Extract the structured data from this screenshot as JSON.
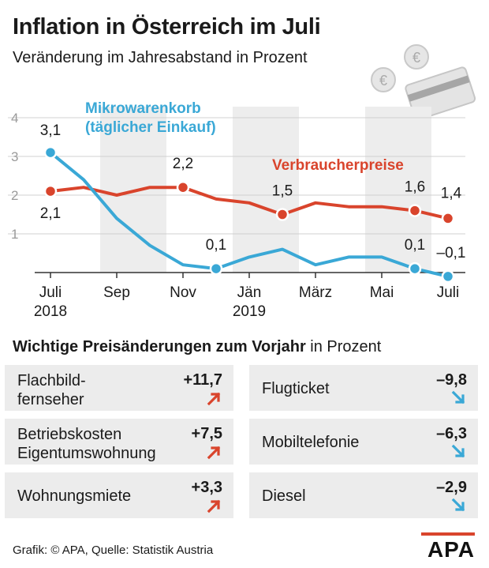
{
  "header": {
    "title": "Inflation in Österreich im Juli",
    "subtitle": "Veränderung im Jahresabstand in Prozent"
  },
  "chart_data": {
    "type": "line",
    "ylim": [
      0,
      4
    ],
    "yticks": [
      "1",
      "2",
      "3",
      "4"
    ],
    "x_ticks": [
      {
        "label": "Juli",
        "sublabel": "2018",
        "month": 0
      },
      {
        "label": "Sep",
        "sublabel": "",
        "month": 2
      },
      {
        "label": "Nov",
        "sublabel": "",
        "month": 4
      },
      {
        "label": "Jän",
        "sublabel": "2019",
        "month": 6
      },
      {
        "label": "März",
        "sublabel": "",
        "month": 8
      },
      {
        "label": "Mai",
        "sublabel": "",
        "month": 10
      },
      {
        "label": "Juli",
        "sublabel": "",
        "month": 12
      }
    ],
    "series": [
      {
        "name": "Verbraucherpreise",
        "color": "#d9442c",
        "values": [
          2.1,
          2.2,
          2.0,
          2.2,
          2.2,
          1.9,
          1.8,
          1.5,
          1.8,
          1.7,
          1.7,
          1.6,
          1.4
        ],
        "labeled_points": [
          {
            "month": 0,
            "label": "2,1"
          },
          {
            "month": 4,
            "label": "2,2"
          },
          {
            "month": 7,
            "label": "1,5"
          },
          {
            "month": 11,
            "label": "1,6"
          },
          {
            "month": 12,
            "label": "1,4"
          }
        ]
      },
      {
        "name": "Mikrowarenkorb (täglicher Einkauf)",
        "name_line1": "Mikrowarenkorb",
        "name_line2": "(täglicher Einkauf)",
        "color": "#3aa8d6",
        "values": [
          3.1,
          2.4,
          1.4,
          0.7,
          0.2,
          0.1,
          0.4,
          0.6,
          0.2,
          0.4,
          0.4,
          0.1,
          -0.1
        ],
        "labeled_points": [
          {
            "month": 0,
            "label": "3,1"
          },
          {
            "month": 5,
            "label": "0,1"
          },
          {
            "month": 11,
            "label": "0,1"
          },
          {
            "month": 12,
            "label": "–0,1"
          }
        ]
      }
    ]
  },
  "changes": {
    "title_bold": "Wichtige Preisänderungen zum Vorjahr",
    "title_rest": " in Prozent",
    "increases_color": "#d9442c",
    "decreases_color": "#3aa8d6",
    "increases": [
      {
        "line1": "Flachbild-",
        "line2": "fernseher",
        "value": "+11,7"
      },
      {
        "line1": "Betriebskosten",
        "line2": "Eigentumswohnung",
        "value": "+7,5"
      },
      {
        "line1": "Wohnungsmiete",
        "line2": "",
        "value": "+3,3"
      }
    ],
    "decreases": [
      {
        "line1": "Flugticket",
        "line2": "",
        "value": "–9,8"
      },
      {
        "line1": "Mobiltelefonie",
        "line2": "",
        "value": "–6,3"
      },
      {
        "line1": "Diesel",
        "line2": "",
        "value": "–2,9"
      }
    ]
  },
  "footer": {
    "source": "Grafik: © APA, Quelle: Statistik Austria",
    "logo": "APA"
  },
  "icons": [
    "euro-coin-icon",
    "credit-card-icon"
  ]
}
